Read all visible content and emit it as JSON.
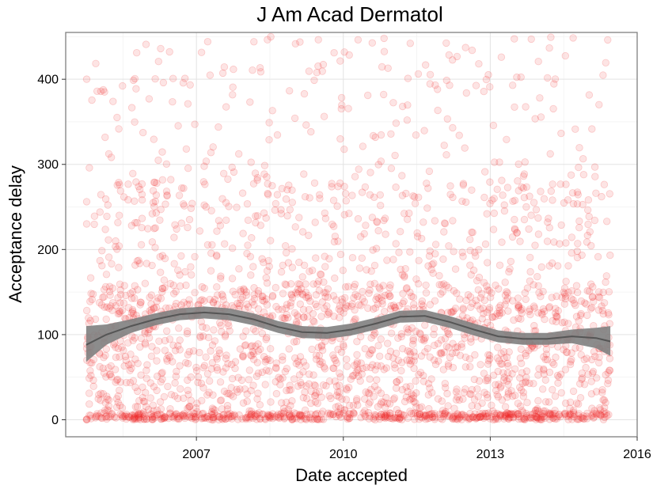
{
  "chart_data": {
    "type": "scatter",
    "title": "J Am Acad Dermatol",
    "xlabel": "Date accepted",
    "ylabel": "Acceptance delay",
    "x_ticks": [
      "2007",
      "2010",
      "2013",
      "2016"
    ],
    "y_ticks": [
      "0",
      "100",
      "200",
      "300",
      "400"
    ],
    "xlim": [
      "2004-05-01",
      "2016-01-01"
    ],
    "ylim": [
      -20,
      455
    ],
    "grid": true,
    "legend": "none",
    "point_color": "#ee2222",
    "point_alpha": 0.12,
    "point_count": 2600,
    "x_range_points": [
      "2004-10-01",
      "2015-06-15"
    ],
    "smooth_color": "#555555",
    "smooth_ribbon_color": "#808080",
    "smooth": [
      {
        "x": "2004-10-01",
        "y": 88,
        "lo": 68,
        "hi": 110
      },
      {
        "x": "2005-03-01",
        "y": 100,
        "lo": 88,
        "hi": 112
      },
      {
        "x": "2005-09-01",
        "y": 110,
        "lo": 102,
        "hi": 118
      },
      {
        "x": "2006-03-01",
        "y": 118,
        "lo": 111,
        "hi": 125
      },
      {
        "x": "2006-09-01",
        "y": 124,
        "lo": 117,
        "hi": 131
      },
      {
        "x": "2007-03-01",
        "y": 126,
        "lo": 119,
        "hi": 133
      },
      {
        "x": "2007-09-01",
        "y": 124,
        "lo": 117,
        "hi": 131
      },
      {
        "x": "2008-03-01",
        "y": 118,
        "lo": 111,
        "hi": 125
      },
      {
        "x": "2008-09-01",
        "y": 109,
        "lo": 102,
        "hi": 116
      },
      {
        "x": "2009-03-01",
        "y": 103,
        "lo": 96,
        "hi": 110
      },
      {
        "x": "2009-09-01",
        "y": 102,
        "lo": 95,
        "hi": 109
      },
      {
        "x": "2010-03-01",
        "y": 106,
        "lo": 99,
        "hi": 113
      },
      {
        "x": "2010-09-01",
        "y": 113,
        "lo": 106,
        "hi": 120
      },
      {
        "x": "2011-03-01",
        "y": 121,
        "lo": 114,
        "hi": 128
      },
      {
        "x": "2011-09-01",
        "y": 122,
        "lo": 115,
        "hi": 129
      },
      {
        "x": "2012-03-01",
        "y": 115,
        "lo": 108,
        "hi": 122
      },
      {
        "x": "2012-09-01",
        "y": 106,
        "lo": 99,
        "hi": 113
      },
      {
        "x": "2013-03-01",
        "y": 98,
        "lo": 91,
        "hi": 105
      },
      {
        "x": "2013-09-01",
        "y": 95,
        "lo": 88,
        "hi": 102
      },
      {
        "x": "2014-03-01",
        "y": 95,
        "lo": 88,
        "hi": 102
      },
      {
        "x": "2014-09-01",
        "y": 98,
        "lo": 90,
        "hi": 106
      },
      {
        "x": "2015-03-01",
        "y": 96,
        "lo": 84,
        "hi": 108
      },
      {
        "x": "2015-06-15",
        "y": 92,
        "lo": 75,
        "hi": 110
      }
    ]
  }
}
